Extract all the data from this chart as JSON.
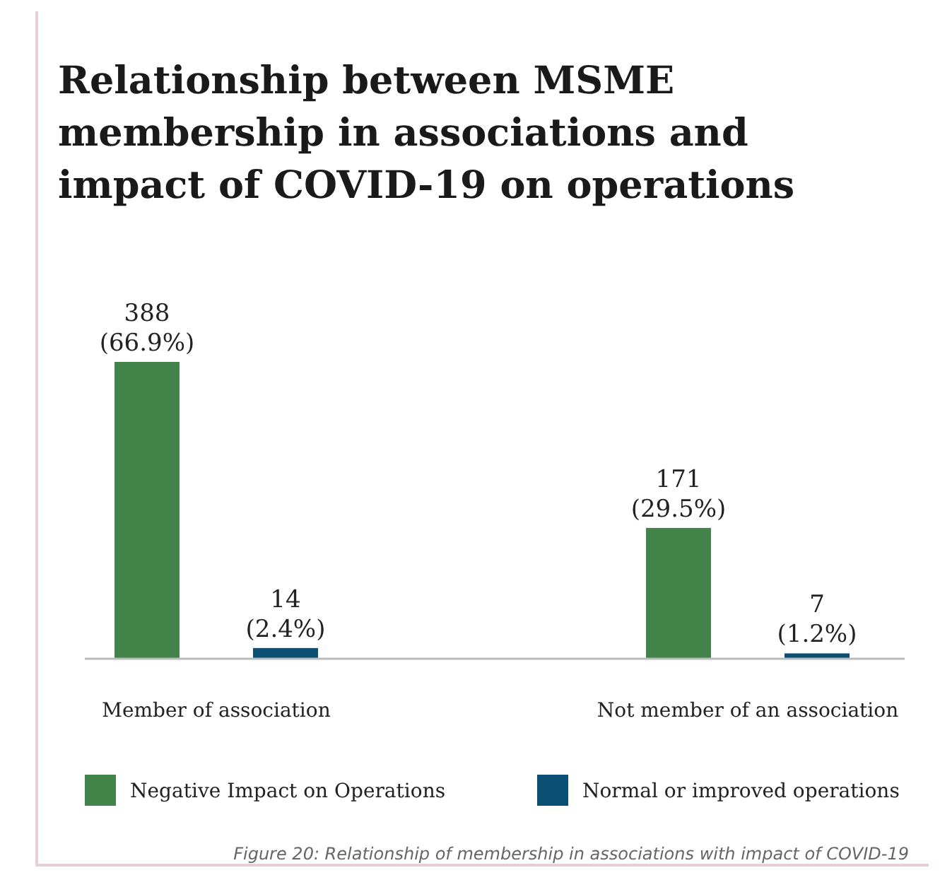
{
  "chart_data": {
    "type": "bar",
    "title": "Relationship between MSME membership in associations and impact of COVID-19 on operations",
    "categories": [
      "Member of association",
      "Not member of an association"
    ],
    "series": [
      {
        "name": "Negative Impact on Operations",
        "color": "#42844a",
        "values": [
          388,
          171
        ],
        "value_labels": [
          "388 (66.9%)",
          "171 (29.5%)"
        ]
      },
      {
        "name": "Normal or improved operations",
        "color": "#0b4f75",
        "values": [
          14,
          7
        ],
        "value_labels": [
          "14 (2.4%)",
          "7 (1.2%)"
        ]
      }
    ],
    "legend": "bottom",
    "annotations": [
      "Figure 20: Relationship of membership in associations with impact of COVID-19"
    ]
  }
}
